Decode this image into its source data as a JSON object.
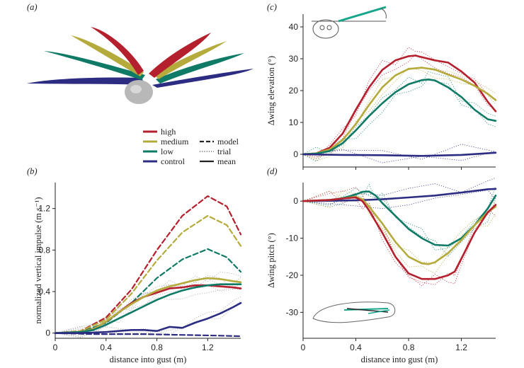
{
  "panel_labels": {
    "a": "(a)",
    "b": "(b)",
    "c": "(c)",
    "d": "(d)"
  },
  "legend": {
    "colors": [
      {
        "label": "high",
        "color": "#b5202e"
      },
      {
        "label": "medium",
        "color": "#b5aa3c"
      },
      {
        "label": "low",
        "color": "#0f7a66"
      },
      {
        "label": "control",
        "color": "#2c2c82"
      }
    ],
    "styles": [
      {
        "label": "model",
        "dash": "dashed"
      },
      {
        "label": "trial",
        "dash": "dotted"
      },
      {
        "label": "mean",
        "dash": "solid"
      }
    ]
  },
  "colors": {
    "high": "#b5202e",
    "medium": "#b5aa3c",
    "low": "#0f7a66",
    "control": "#2c2c82",
    "trial": "#a0a0a0",
    "axis": "#222222"
  },
  "illustration": {
    "wing_colors": [
      "#b5202e",
      "#b5aa3c",
      "#0f7a66",
      "#2c2c82"
    ],
    "body_color": "#b8b8b8"
  },
  "chart_data": [
    {
      "id": "b",
      "type": "line",
      "xlabel": "distance into gust (m)",
      "ylabel": "normalized vertical impulse (m s⁻¹)",
      "xlim": [
        0,
        1.46
      ],
      "ylim": [
        -0.05,
        1.45
      ],
      "xticks": [
        "0",
        "0.4",
        "0.8",
        "1.2"
      ],
      "yticks": [
        "0",
        "0.4",
        "0.8",
        "1.2"
      ],
      "series": [
        {
          "name": "high",
          "style": "model",
          "x": [
            0,
            0.2,
            0.4,
            0.6,
            0.8,
            1.0,
            1.2,
            1.35,
            1.46
          ],
          "y": [
            0,
            0.02,
            0.15,
            0.42,
            0.8,
            1.13,
            1.32,
            1.22,
            0.95
          ]
        },
        {
          "name": "medium",
          "style": "model",
          "x": [
            0,
            0.2,
            0.4,
            0.6,
            0.8,
            1.0,
            1.2,
            1.35,
            1.46
          ],
          "y": [
            0,
            0.02,
            0.13,
            0.38,
            0.7,
            0.97,
            1.13,
            1.04,
            0.84
          ]
        },
        {
          "name": "low",
          "style": "model",
          "x": [
            0,
            0.2,
            0.4,
            0.6,
            0.8,
            1.0,
            1.2,
            1.35,
            1.46
          ],
          "y": [
            0,
            0.01,
            0.1,
            0.29,
            0.53,
            0.71,
            0.81,
            0.73,
            0.59
          ]
        },
        {
          "name": "control",
          "style": "model",
          "x": [
            0,
            0.3,
            0.5,
            0.7,
            0.9,
            1.1,
            1.3,
            1.46
          ],
          "y": [
            0,
            -0.01,
            -0.01,
            -0.01,
            -0.015,
            -0.02,
            -0.025,
            -0.03
          ]
        },
        {
          "name": "high",
          "style": "mean",
          "x": [
            0,
            0.2,
            0.3,
            0.4,
            0.5,
            0.6,
            0.7,
            0.8,
            0.9,
            1.0,
            1.1,
            1.2,
            1.3,
            1.4,
            1.46
          ],
          "y": [
            0,
            0.01,
            0.04,
            0.11,
            0.2,
            0.29,
            0.35,
            0.39,
            0.43,
            0.44,
            0.46,
            0.46,
            0.45,
            0.44,
            0.43
          ]
        },
        {
          "name": "medium",
          "style": "mean",
          "x": [
            0,
            0.2,
            0.3,
            0.4,
            0.5,
            0.6,
            0.7,
            0.8,
            0.9,
            1.0,
            1.1,
            1.2,
            1.3,
            1.4,
            1.46
          ],
          "y": [
            0,
            0.01,
            0.04,
            0.11,
            0.2,
            0.28,
            0.35,
            0.41,
            0.45,
            0.48,
            0.51,
            0.53,
            0.52,
            0.5,
            0.49
          ]
        },
        {
          "name": "low",
          "style": "mean",
          "x": [
            0,
            0.2,
            0.3,
            0.4,
            0.5,
            0.6,
            0.7,
            0.8,
            0.9,
            1.0,
            1.1,
            1.2,
            1.3,
            1.4,
            1.46
          ],
          "y": [
            0,
            0.01,
            0.03,
            0.08,
            0.14,
            0.2,
            0.26,
            0.32,
            0.37,
            0.41,
            0.44,
            0.46,
            0.47,
            0.47,
            0.47
          ]
        },
        {
          "name": "control",
          "style": "mean",
          "x": [
            0,
            0.2,
            0.4,
            0.5,
            0.6,
            0.7,
            0.8,
            0.9,
            1.0,
            1.1,
            1.2,
            1.3,
            1.4,
            1.46
          ],
          "y": [
            0,
            0,
            0.01,
            0.02,
            0.03,
            0.03,
            0.02,
            0.06,
            0.05,
            0.1,
            0.14,
            0.19,
            0.25,
            0.29
          ]
        }
      ]
    },
    {
      "id": "c",
      "type": "line",
      "xlabel": "",
      "ylabel": "Δwing elevation (°)",
      "xlim": [
        0,
        1.46
      ],
      "ylim": [
        -4,
        44
      ],
      "xticks": [],
      "yticks": [
        "0",
        "10",
        "20",
        "30",
        "40"
      ],
      "series": [
        {
          "name": "high",
          "style": "mean",
          "x": [
            0,
            0.1,
            0.2,
            0.3,
            0.4,
            0.5,
            0.6,
            0.7,
            0.8,
            0.85,
            0.9,
            1.0,
            1.1,
            1.2,
            1.3,
            1.4,
            1.46
          ],
          "y": [
            0,
            0.3,
            2.0,
            6.5,
            14.0,
            21.0,
            26.5,
            29.5,
            30.8,
            31.0,
            30.5,
            29.5,
            28.8,
            26.0,
            22.5,
            16.5,
            13.5
          ]
        },
        {
          "name": "medium",
          "style": "mean",
          "x": [
            0,
            0.1,
            0.2,
            0.3,
            0.4,
            0.5,
            0.6,
            0.7,
            0.8,
            0.9,
            1.0,
            1.1,
            1.2,
            1.3,
            1.4,
            1.46
          ],
          "y": [
            0,
            0.3,
            1.5,
            4.5,
            9.5,
            15.5,
            21.0,
            24.8,
            26.8,
            27.2,
            26.6,
            25.0,
            23.5,
            21.5,
            19.0,
            17.0
          ]
        },
        {
          "name": "low",
          "style": "mean",
          "x": [
            0,
            0.1,
            0.2,
            0.3,
            0.4,
            0.5,
            0.6,
            0.7,
            0.8,
            0.9,
            0.95,
            1.0,
            1.1,
            1.2,
            1.3,
            1.4,
            1.46
          ],
          "y": [
            0,
            0.2,
            1.0,
            3.5,
            7.5,
            12.0,
            16.0,
            19.5,
            22.0,
            23.3,
            23.5,
            23.2,
            21.0,
            18.0,
            14.0,
            11.0,
            10.5
          ]
        },
        {
          "name": "control",
          "style": "mean",
          "x": [
            0,
            0.3,
            0.6,
            0.9,
            1.2,
            1.46
          ],
          "y": [
            0,
            -0.2,
            -0.3,
            -0.5,
            -0.2,
            0.5
          ]
        }
      ]
    },
    {
      "id": "d",
      "type": "line",
      "xlabel": "distance into gust (m)",
      "ylabel": "Δwing pitch (°)",
      "xlim": [
        0,
        1.46
      ],
      "ylim": [
        -37,
        5
      ],
      "xticks": [
        "0",
        "0.4",
        "0.8",
        "1.2"
      ],
      "yticks": [
        "0",
        "-10",
        "-20",
        "-30"
      ],
      "series": [
        {
          "name": "control",
          "style": "mean",
          "x": [
            0,
            0.2,
            0.4,
            0.6,
            0.8,
            1.0,
            1.2,
            1.4,
            1.46
          ],
          "y": [
            0,
            0.1,
            0.2,
            0.5,
            1.0,
            1.5,
            2.3,
            3.2,
            3.3
          ]
        },
        {
          "name": "low",
          "style": "mean",
          "x": [
            0,
            0.2,
            0.3,
            0.4,
            0.45,
            0.5,
            0.55,
            0.6,
            0.7,
            0.8,
            0.9,
            1.0,
            1.1,
            1.2,
            1.3,
            1.4,
            1.46
          ],
          "y": [
            0,
            0.3,
            0.8,
            1.8,
            2.5,
            2.6,
            1.5,
            -0.5,
            -4.0,
            -7.5,
            -10.0,
            -11.8,
            -12.0,
            -10.0,
            -6.5,
            -2.0,
            1.5
          ]
        },
        {
          "name": "medium",
          "style": "mean",
          "x": [
            0,
            0.2,
            0.3,
            0.4,
            0.45,
            0.5,
            0.6,
            0.7,
            0.8,
            0.9,
            0.95,
            1.0,
            1.1,
            1.2,
            1.3,
            1.4,
            1.46
          ],
          "y": [
            0,
            0.3,
            0.7,
            1.2,
            0.5,
            -1.5,
            -6.0,
            -11.0,
            -15.0,
            -16.8,
            -17.0,
            -16.5,
            -14.0,
            -10.5,
            -6.5,
            -3.0,
            -1.5
          ]
        },
        {
          "name": "high",
          "style": "mean",
          "x": [
            0,
            0.2,
            0.3,
            0.4,
            0.45,
            0.5,
            0.6,
            0.7,
            0.8,
            0.9,
            1.0,
            1.1,
            1.15,
            1.2,
            1.3,
            1.4,
            1.46
          ],
          "y": [
            0,
            0.3,
            0.7,
            1.0,
            0,
            -2.5,
            -8.5,
            -15.0,
            -19.5,
            -21.0,
            -21.0,
            -20.0,
            -19.0,
            -15.5,
            -8.5,
            -3.0,
            -1.0
          ]
        }
      ]
    }
  ]
}
